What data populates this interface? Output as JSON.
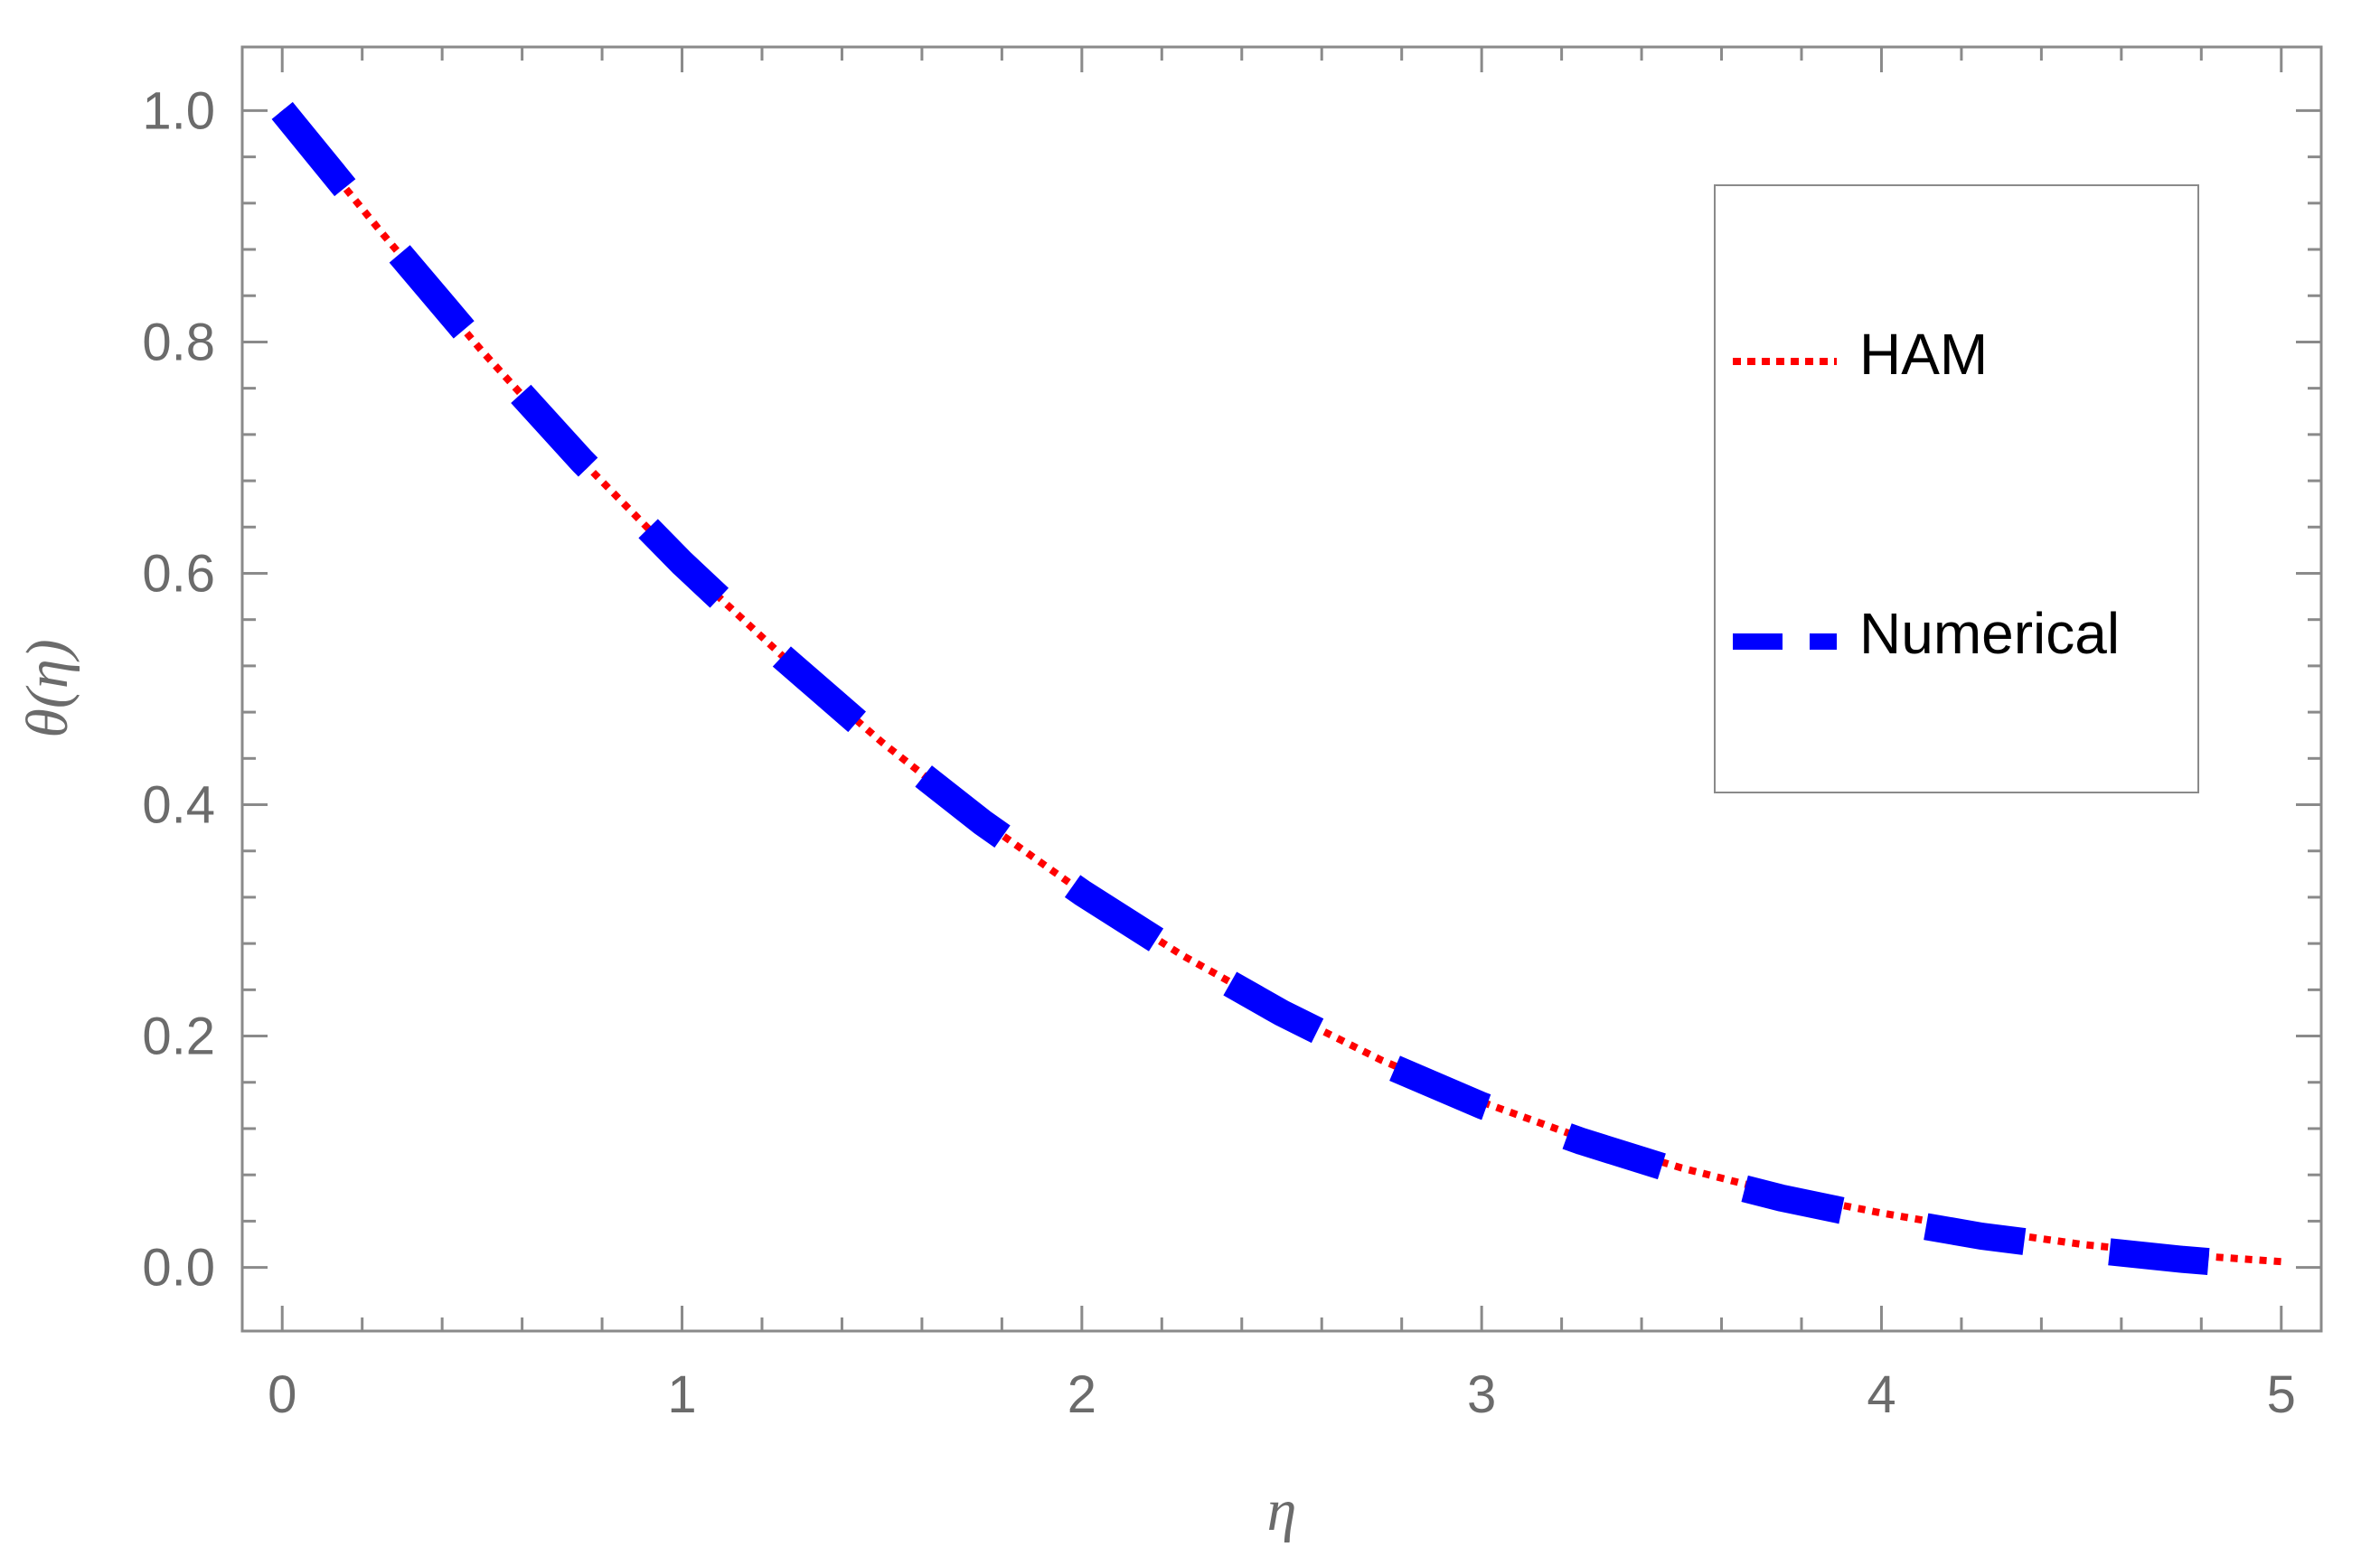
{
  "chart_data": {
    "type": "line",
    "title": "",
    "xlabel": "η",
    "ylabel": "θ(η)",
    "xlim": [
      -0.1,
      5.1
    ],
    "ylim": [
      -0.055,
      1.055
    ],
    "xticks": [
      0,
      1,
      2,
      3,
      4,
      5
    ],
    "xtick_labels": [
      "0",
      "1",
      "2",
      "3",
      "4",
      "5"
    ],
    "yticks": [
      0.0,
      0.2,
      0.4,
      0.6,
      0.8,
      1.0
    ],
    "ytick_labels": [
      "0.0",
      "0.2",
      "0.4",
      "0.6",
      "0.8",
      "1.0"
    ],
    "grid": false,
    "legend_position": "top-right",
    "x": [
      0,
      0.25,
      0.5,
      0.75,
      1.0,
      1.25,
      1.5,
      1.75,
      2.0,
      2.25,
      2.5,
      2.75,
      3.0,
      3.25,
      3.5,
      3.75,
      4.0,
      4.25,
      4.5,
      4.75,
      5.0
    ],
    "series": [
      {
        "name": "HAM",
        "style": "dotted",
        "color": "#ff0000",
        "values": [
          1.0,
          0.894,
          0.792,
          0.697,
          0.609,
          0.529,
          0.454,
          0.386,
          0.325,
          0.27,
          0.222,
          0.179,
          0.143,
          0.112,
          0.086,
          0.064,
          0.047,
          0.032,
          0.02,
          0.011,
          0.005
        ]
      },
      {
        "name": "Numerical",
        "style": "dashed",
        "color": "#0000ff",
        "values": [
          1.0,
          0.894,
          0.792,
          0.697,
          0.609,
          0.528,
          0.453,
          0.385,
          0.324,
          0.269,
          0.22,
          0.177,
          0.14,
          0.109,
          0.082,
          0.06,
          0.042,
          0.027,
          0.016,
          0.007,
          0.0
        ]
      }
    ]
  }
}
